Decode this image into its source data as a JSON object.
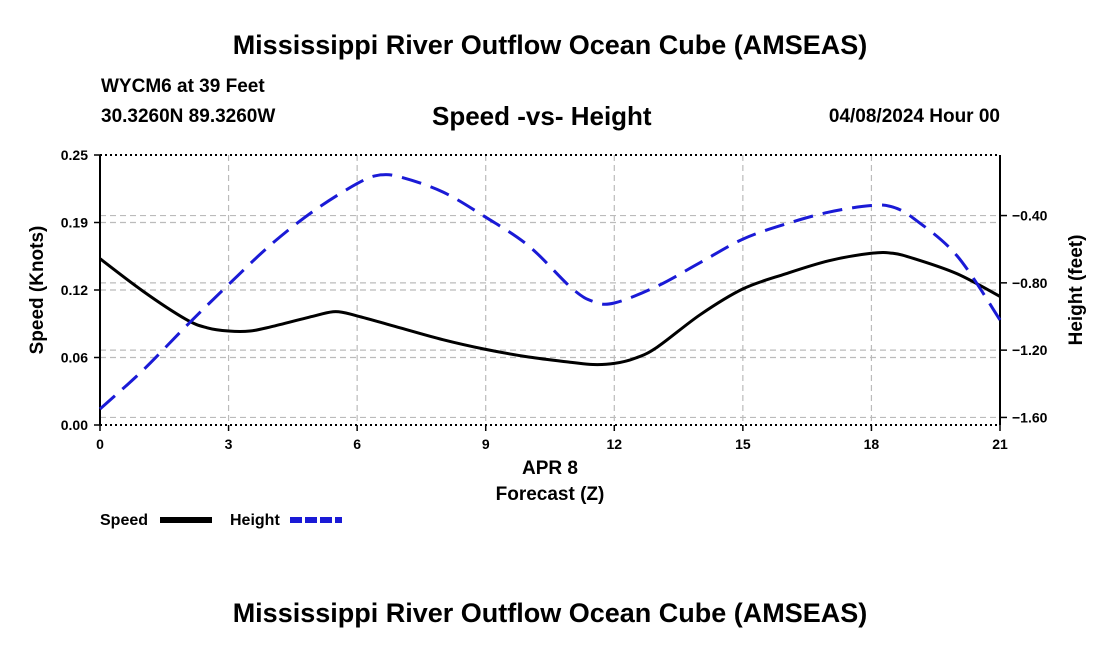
{
  "header": {
    "title": "Mississippi River Outflow Ocean Cube (AMSEAS)",
    "station": "WYCM6 at 39 Feet",
    "coords": "30.3260N  89.3260W",
    "subtitle": "Speed -vs- Height",
    "datetime": "04/08/2024 Hour 00"
  },
  "footer": {
    "title": "Mississippi River Outflow Ocean Cube (AMSEAS)"
  },
  "chart_data": {
    "type": "line",
    "title": "Speed -vs- Height",
    "xlabel": "Forecast (Z)",
    "xlabel_date": "APR 8",
    "ylabel_left": "Speed (Knots)",
    "ylabel_right": "Height (feet)",
    "xlim": [
      0,
      21
    ],
    "ylim_left": [
      0,
      0.25
    ],
    "ylim_right": [
      -1.645,
      -0.04
    ],
    "x_ticks": [
      0,
      3,
      6,
      9,
      12,
      15,
      18,
      21
    ],
    "x_tick_labels": [
      "0",
      "3",
      "6",
      "9",
      "12",
      "15",
      "18",
      "21"
    ],
    "left_ticks": [
      0.0,
      0.0625,
      0.125,
      0.1875,
      0.25
    ],
    "left_tick_labels": [
      "0.00",
      "0.06",
      "0.12",
      "0.19",
      "0.25"
    ],
    "right_ticks": [
      -1.6,
      -1.2,
      -0.8,
      -0.4
    ],
    "right_tick_labels": [
      "−1.60",
      "−1.20",
      "−0.80",
      "−0.40"
    ],
    "grid": true,
    "series": [
      {
        "name": "Speed",
        "axis": "left",
        "color": "#000000",
        "dash": "solid",
        "x": [
          0,
          1,
          2,
          2.5,
          3,
          3.5,
          4,
          5,
          5.5,
          6,
          7,
          8,
          9,
          10,
          11,
          11.5,
          12,
          12.5,
          13,
          14,
          15,
          16,
          17,
          18,
          18.5,
          19,
          20,
          21
        ],
        "y": [
          0.154,
          0.124,
          0.098,
          0.09,
          0.087,
          0.087,
          0.091,
          0.101,
          0.105,
          0.101,
          0.09,
          0.079,
          0.07,
          0.063,
          0.058,
          0.056,
          0.057,
          0.062,
          0.072,
          0.102,
          0.126,
          0.14,
          0.152,
          0.159,
          0.159,
          0.154,
          0.14,
          0.119
        ]
      },
      {
        "name": "Height",
        "axis": "right",
        "color": "#1a1ad6",
        "dash": "dashed",
        "x": [
          0,
          1,
          2,
          3,
          4,
          5,
          6,
          6.5,
          7,
          8,
          9,
          10,
          11,
          11.5,
          12,
          13,
          14,
          15,
          16,
          17,
          18,
          18.5,
          19,
          20,
          21
        ],
        "y": [
          -1.55,
          -1.32,
          -1.06,
          -0.81,
          -0.57,
          -0.37,
          -0.21,
          -0.16,
          -0.17,
          -0.26,
          -0.41,
          -0.58,
          -0.83,
          -0.91,
          -0.92,
          -0.82,
          -0.68,
          -0.54,
          -0.45,
          -0.38,
          -0.34,
          -0.35,
          -0.42,
          -0.64,
          -1.02
        ]
      }
    ],
    "legend": {
      "position": "bottom-left",
      "speed_label": "Speed",
      "height_label": "Height"
    }
  }
}
